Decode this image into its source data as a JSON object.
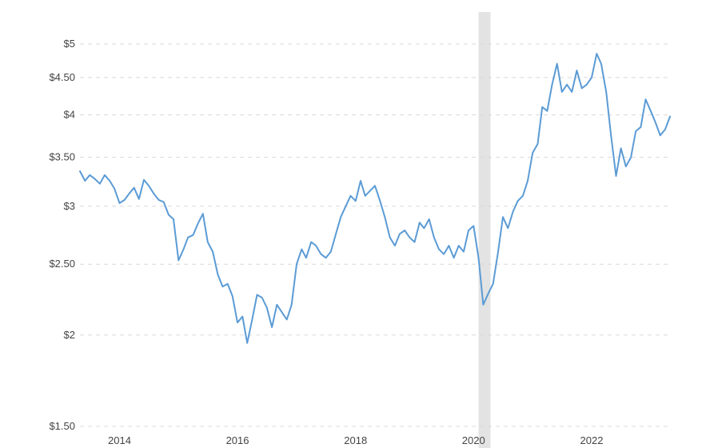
{
  "chart_data": {
    "type": "line",
    "title": "",
    "xlabel": "",
    "ylabel": "",
    "y_scale": "log",
    "ylim": [
      1.5,
      5.2
    ],
    "xlim": [
      "2013-05-01",
      "2023-05-01"
    ],
    "grid": {
      "y": true,
      "x": false
    },
    "y_ticks": [
      {
        "value": 5.0,
        "label": "$5"
      },
      {
        "value": 4.5,
        "label": "$4.50"
      },
      {
        "value": 4.0,
        "label": "$4"
      },
      {
        "value": 3.5,
        "label": "$3.50"
      },
      {
        "value": 3.0,
        "label": "$3"
      },
      {
        "value": 2.5,
        "label": "$2.50"
      },
      {
        "value": 2.0,
        "label": "$2"
      },
      {
        "value": 1.5,
        "label": "$1.50"
      }
    ],
    "x_ticks": [
      {
        "value": "2014-01-01",
        "label": "2014"
      },
      {
        "value": "2016-01-01",
        "label": "2016"
      },
      {
        "value": "2018-01-01",
        "label": "2018"
      },
      {
        "value": "2020-01-01",
        "label": "2020"
      },
      {
        "value": "2022-01-01",
        "label": "2022"
      }
    ],
    "shaded_periods": [
      {
        "start": "2020-02-01",
        "end": "2020-04-15",
        "color": "#e3e3e3"
      }
    ],
    "series": [
      {
        "color": "#5b9bd5",
        "points": [
          [
            "2013-05-01",
            3.35
          ],
          [
            "2013-06-01",
            3.25
          ],
          [
            "2013-07-01",
            3.31
          ],
          [
            "2013-08-01",
            3.27
          ],
          [
            "2013-09-01",
            3.22
          ],
          [
            "2013-10-01",
            3.31
          ],
          [
            "2013-11-01",
            3.25
          ],
          [
            "2013-12-01",
            3.17
          ],
          [
            "2014-01-01",
            3.03
          ],
          [
            "2014-02-01",
            3.06
          ],
          [
            "2014-03-01",
            3.12
          ],
          [
            "2014-04-01",
            3.18
          ],
          [
            "2014-05-01",
            3.07
          ],
          [
            "2014-06-01",
            3.26
          ],
          [
            "2014-07-01",
            3.2
          ],
          [
            "2014-08-01",
            3.12
          ],
          [
            "2014-09-01",
            3.06
          ],
          [
            "2014-10-01",
            3.04
          ],
          [
            "2014-11-01",
            2.92
          ],
          [
            "2014-12-01",
            2.88
          ],
          [
            "2015-01-01",
            2.53
          ],
          [
            "2015-02-01",
            2.62
          ],
          [
            "2015-03-01",
            2.72
          ],
          [
            "2015-04-01",
            2.74
          ],
          [
            "2015-05-01",
            2.84
          ],
          [
            "2015-06-01",
            2.93
          ],
          [
            "2015-07-01",
            2.68
          ],
          [
            "2015-08-01",
            2.6
          ],
          [
            "2015-09-01",
            2.42
          ],
          [
            "2015-10-01",
            2.33
          ],
          [
            "2015-11-01",
            2.35
          ],
          [
            "2015-12-01",
            2.26
          ],
          [
            "2016-01-01",
            2.08
          ],
          [
            "2016-02-01",
            2.12
          ],
          [
            "2016-03-01",
            1.95
          ],
          [
            "2016-04-01",
            2.1
          ],
          [
            "2016-05-01",
            2.27
          ],
          [
            "2016-06-01",
            2.25
          ],
          [
            "2016-07-01",
            2.18
          ],
          [
            "2016-08-01",
            2.05
          ],
          [
            "2016-09-01",
            2.2
          ],
          [
            "2016-10-01",
            2.15
          ],
          [
            "2016-11-01",
            2.1
          ],
          [
            "2016-12-01",
            2.2
          ],
          [
            "2017-01-01",
            2.5
          ],
          [
            "2017-02-01",
            2.62
          ],
          [
            "2017-03-01",
            2.55
          ],
          [
            "2017-04-01",
            2.68
          ],
          [
            "2017-05-01",
            2.65
          ],
          [
            "2017-06-01",
            2.58
          ],
          [
            "2017-07-01",
            2.55
          ],
          [
            "2017-08-01",
            2.6
          ],
          [
            "2017-09-01",
            2.75
          ],
          [
            "2017-10-01",
            2.9
          ],
          [
            "2017-11-01",
            3.0
          ],
          [
            "2017-12-01",
            3.1
          ],
          [
            "2018-01-01",
            3.05
          ],
          [
            "2018-02-01",
            3.25
          ],
          [
            "2018-03-01",
            3.1
          ],
          [
            "2018-04-01",
            3.15
          ],
          [
            "2018-05-01",
            3.2
          ],
          [
            "2018-06-01",
            3.05
          ],
          [
            "2018-07-01",
            2.9
          ],
          [
            "2018-08-01",
            2.72
          ],
          [
            "2018-09-01",
            2.65
          ],
          [
            "2018-10-01",
            2.75
          ],
          [
            "2018-11-01",
            2.78
          ],
          [
            "2018-12-01",
            2.72
          ],
          [
            "2019-01-01",
            2.68
          ],
          [
            "2019-02-01",
            2.85
          ],
          [
            "2019-03-01",
            2.8
          ],
          [
            "2019-04-01",
            2.88
          ],
          [
            "2019-05-01",
            2.72
          ],
          [
            "2019-06-01",
            2.62
          ],
          [
            "2019-07-01",
            2.58
          ],
          [
            "2019-08-01",
            2.65
          ],
          [
            "2019-09-01",
            2.55
          ],
          [
            "2019-10-01",
            2.65
          ],
          [
            "2019-11-01",
            2.6
          ],
          [
            "2019-12-01",
            2.78
          ],
          [
            "2020-01-01",
            2.82
          ],
          [
            "2020-02-01",
            2.55
          ],
          [
            "2020-03-01",
            2.2
          ],
          [
            "2020-04-01",
            2.28
          ],
          [
            "2020-05-01",
            2.35
          ],
          [
            "2020-06-01",
            2.6
          ],
          [
            "2020-07-01",
            2.9
          ],
          [
            "2020-08-01",
            2.8
          ],
          [
            "2020-09-01",
            2.95
          ],
          [
            "2020-10-01",
            3.05
          ],
          [
            "2020-11-01",
            3.1
          ],
          [
            "2020-12-01",
            3.25
          ],
          [
            "2021-01-01",
            3.55
          ],
          [
            "2021-02-01",
            3.65
          ],
          [
            "2021-03-01",
            4.1
          ],
          [
            "2021-04-01",
            4.05
          ],
          [
            "2021-05-01",
            4.4
          ],
          [
            "2021-06-01",
            4.7
          ],
          [
            "2021-07-01",
            4.3
          ],
          [
            "2021-08-01",
            4.4
          ],
          [
            "2021-09-01",
            4.3
          ],
          [
            "2021-10-01",
            4.6
          ],
          [
            "2021-11-01",
            4.35
          ],
          [
            "2021-12-01",
            4.4
          ],
          [
            "2022-01-01",
            4.5
          ],
          [
            "2022-02-01",
            4.85
          ],
          [
            "2022-03-01",
            4.7
          ],
          [
            "2022-04-01",
            4.3
          ],
          [
            "2022-05-01",
            3.75
          ],
          [
            "2022-06-01",
            3.3
          ],
          [
            "2022-07-01",
            3.6
          ],
          [
            "2022-08-01",
            3.4
          ],
          [
            "2022-09-01",
            3.5
          ],
          [
            "2022-10-01",
            3.8
          ],
          [
            "2022-11-01",
            3.85
          ],
          [
            "2022-12-01",
            4.2
          ],
          [
            "2023-01-01",
            4.05
          ],
          [
            "2023-02-01",
            3.9
          ],
          [
            "2023-03-01",
            3.75
          ],
          [
            "2023-04-01",
            3.82
          ],
          [
            "2023-05-01",
            3.98
          ]
        ]
      }
    ]
  }
}
